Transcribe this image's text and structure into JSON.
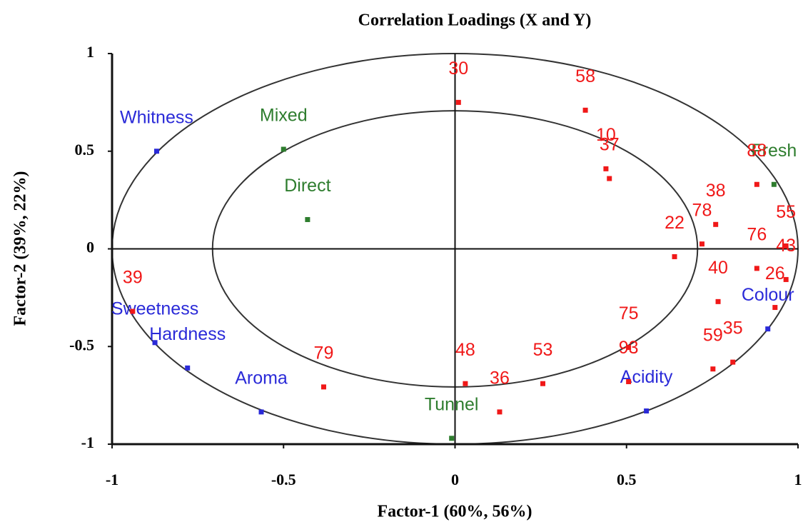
{
  "chart_data": {
    "type": "scatter",
    "title": "Correlation Loadings (X and Y)",
    "x_label": "Factor-1 (60%, 56%)",
    "y_label": "Factor-2 (39%, 22%)",
    "xlim": [
      -1,
      1
    ],
    "ylim": [
      -1,
      1
    ],
    "xticks": [
      -1,
      -0.5,
      0,
      0.5,
      1
    ],
    "yticks": [
      -1,
      -0.5,
      0,
      0.5,
      1
    ],
    "groups": [
      {
        "color": "#2a2ad8",
        "labels": [
          "Whitness",
          "Sweetness",
          "Hardness",
          "Aroma",
          "Acidity",
          "Colour"
        ],
        "x": [
          -0.87,
          -0.875,
          -0.78,
          -0.565,
          0.558,
          0.912
        ],
        "y": [
          0.5,
          -0.48,
          -0.61,
          -0.835,
          -0.83,
          -0.41
        ]
      },
      {
        "color": "#2e7d2e",
        "labels": [
          "Mixed",
          "Direct",
          "Tunnel",
          "Fresh"
        ],
        "x": [
          -0.5,
          -0.43,
          -0.01,
          0.93
        ],
        "y": [
          0.51,
          0.15,
          -0.97,
          0.33
        ]
      },
      {
        "color": "#f01818",
        "labels": [
          "30",
          "58",
          "10",
          "37",
          "22",
          "78",
          "38",
          "88",
          "55",
          "43",
          "76",
          "40",
          "26",
          "59",
          "35",
          "53",
          "48",
          "36",
          "79",
          "93",
          "75",
          "39"
        ],
        "x": [
          0.01,
          0.38,
          0.44,
          0.45,
          0.64,
          0.72,
          0.76,
          0.88,
          0.965,
          0.965,
          0.88,
          0.767,
          0.933,
          0.752,
          0.81,
          0.256,
          0.03,
          0.13,
          -0.383,
          0.506,
          0.506,
          -0.94
        ],
        "y": [
          0.75,
          0.71,
          0.41,
          0.36,
          -0.04,
          0.025,
          0.125,
          0.33,
          0.015,
          -0.157,
          -0.1,
          -0.27,
          -0.3,
          -0.615,
          -0.58,
          -0.69,
          -0.69,
          -0.835,
          -0.707,
          -0.68,
          -0.505,
          -0.32
        ]
      }
    ]
  }
}
